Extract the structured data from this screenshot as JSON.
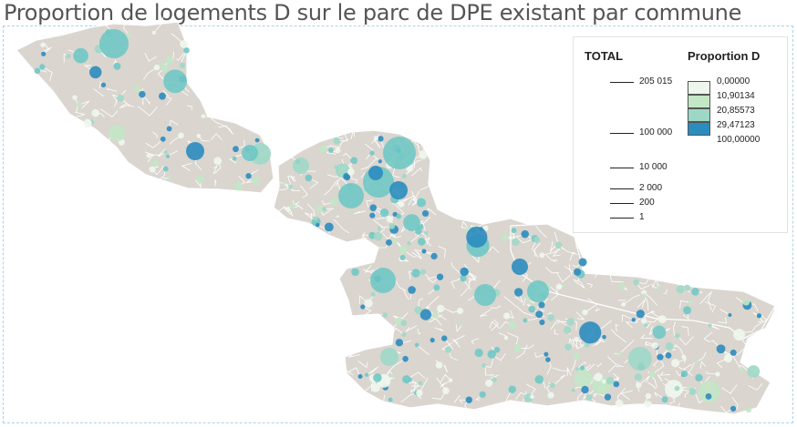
{
  "title": "Proportion de logements D sur le parc de DPE existant par commune",
  "colors": {
    "land": "#dad5cf",
    "border": "#ffffff",
    "class_colors": [
      "#eef7ee",
      "#c3e6c5",
      "#9dd8c6",
      "#70c8c4",
      "#2b8cbe"
    ]
  },
  "legend": {
    "size_title": "TOTAL",
    "class_title": "Proportion D",
    "size_values": [
      "205 015",
      "100 000",
      "10 000",
      "2 000",
      "200",
      "1"
    ],
    "class_breaks": [
      "0,00000",
      "10,90134",
      "20,85573",
      "29,47123",
      "100,00000"
    ]
  }
}
